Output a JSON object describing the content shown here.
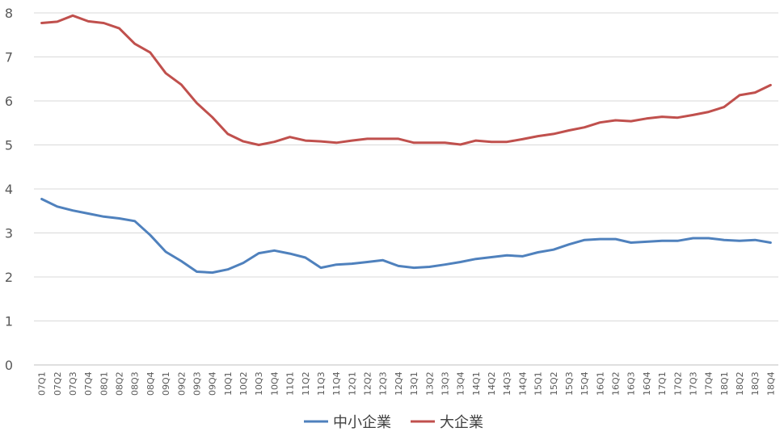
{
  "chart_data": {
    "type": "line",
    "title": "",
    "xlabel": "",
    "ylabel": "",
    "ylim": [
      0,
      8
    ],
    "yticks": [
      "0",
      "1",
      "2",
      "3",
      "4",
      "5",
      "6",
      "7",
      "8"
    ],
    "grid": true,
    "legend_position": "bottom",
    "categories": [
      "07Q1",
      "07Q2",
      "07Q3",
      "07Q4",
      "08Q1",
      "08Q2",
      "08Q3",
      "08Q4",
      "09Q1",
      "09Q2",
      "09Q3",
      "09Q4",
      "10Q1",
      "10Q2",
      "10Q3",
      "10Q4",
      "11Q1",
      "11Q2",
      "11Q3",
      "11Q4",
      "12Q1",
      "12Q2",
      "12Q3",
      "12Q4",
      "13Q1",
      "13Q2",
      "13Q3",
      "13Q4",
      "14Q1",
      "14Q2",
      "14Q3",
      "14Q4",
      "15Q1",
      "15Q2",
      "15Q3",
      "15Q4",
      "16Q1",
      "16Q2",
      "16Q3",
      "16Q4",
      "17Q1",
      "17Q2",
      "17Q3",
      "17Q4",
      "18Q1",
      "18Q2",
      "18Q3",
      "18Q4"
    ],
    "series": [
      {
        "name": "中小企業",
        "color": "#4F81BD",
        "values": [
          3.77,
          3.6,
          3.51,
          3.44,
          3.37,
          3.33,
          3.27,
          2.95,
          2.57,
          2.36,
          2.12,
          2.1,
          2.17,
          2.32,
          2.54,
          2.6,
          2.53,
          2.44,
          2.21,
          2.28,
          2.3,
          2.34,
          2.38,
          2.25,
          2.21,
          2.23,
          2.28,
          2.34,
          2.41,
          2.45,
          2.49,
          2.47,
          2.56,
          2.62,
          2.74,
          2.84,
          2.86,
          2.86,
          2.78,
          2.8,
          2.82,
          2.82,
          2.88,
          2.88,
          2.84,
          2.82,
          2.84,
          2.78
        ]
      },
      {
        "name": "大企業",
        "color": "#C0504D",
        "values": [
          7.77,
          7.8,
          7.94,
          7.81,
          7.77,
          7.65,
          7.3,
          7.1,
          6.63,
          6.37,
          5.95,
          5.63,
          5.25,
          5.08,
          5.0,
          5.07,
          5.18,
          5.1,
          5.08,
          5.05,
          5.1,
          5.14,
          5.14,
          5.14,
          5.05,
          5.05,
          5.05,
          5.01,
          5.1,
          5.07,
          5.07,
          5.13,
          5.2,
          5.25,
          5.33,
          5.4,
          5.51,
          5.56,
          5.54,
          5.6,
          5.64,
          5.62,
          5.68,
          5.75,
          5.86,
          6.13,
          6.19,
          6.36
        ]
      }
    ]
  }
}
